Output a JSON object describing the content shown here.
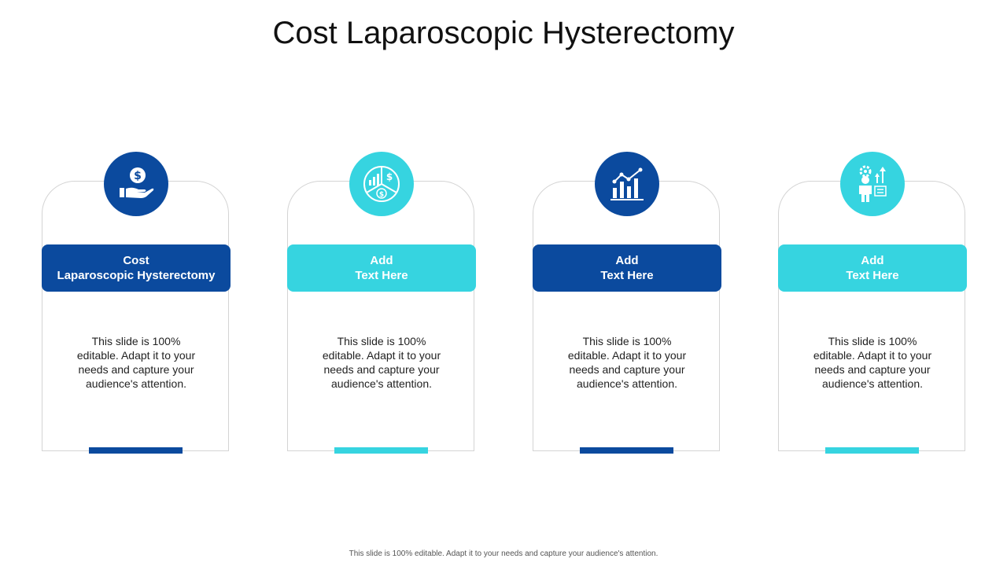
{
  "slide": {
    "title": "Cost Laparoscopic Hysterectomy",
    "footer": "This slide is 100% editable. Adapt it to your needs and capture your audience's attention."
  },
  "colors": {
    "dark": "#0b4a9e",
    "light": "#36d4e0"
  },
  "cards": [
    {
      "icon": "hand-dollar-icon",
      "heading_line1": "Cost",
      "heading_line2": "Laparoscopic Hysterectomy",
      "body": "This slide is 100% editable. Adapt it to your needs and capture your audience's attention."
    },
    {
      "icon": "pie-chart-dollar-icon",
      "heading_line1": "Add",
      "heading_line2": "Text Here",
      "body": "This slide is 100% editable. Adapt it to your needs and capture your audience's attention."
    },
    {
      "icon": "bar-line-chart-icon",
      "heading_line1": "Add",
      "heading_line2": "Text Here",
      "body": "This slide is 100% editable. Adapt it to your needs and capture your audience's attention."
    },
    {
      "icon": "person-gear-checklist-icon",
      "heading_line1": "Add",
      "heading_line2": "Text Here",
      "body": "This slide is 100% editable. Adapt it to your needs and capture your audience's attention."
    }
  ]
}
